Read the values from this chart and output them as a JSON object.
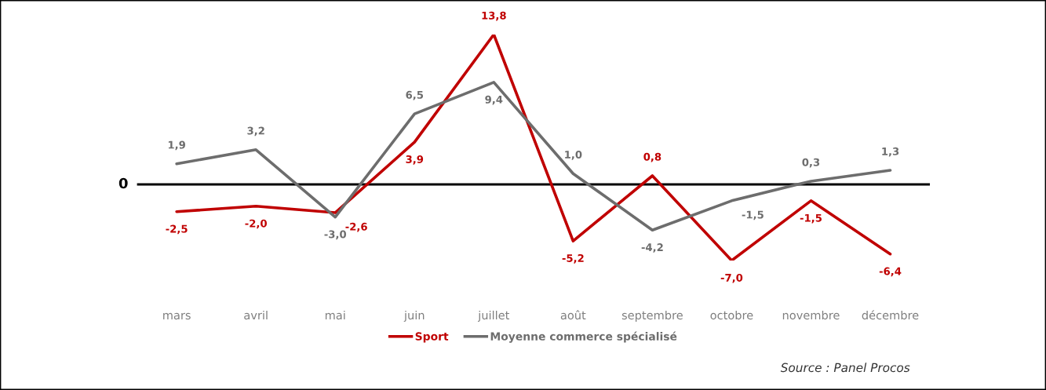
{
  "chart_data": {
    "type": "line",
    "categories": [
      "mars",
      "avril",
      "mai",
      "juin",
      "juillet",
      "août",
      "septembre",
      "octobre",
      "novembre",
      "décembre"
    ],
    "series": [
      {
        "name": "Sport",
        "color": "#c00000",
        "values": [
          -2.5,
          -2.0,
          -2.6,
          3.9,
          13.8,
          -5.2,
          0.8,
          -7.0,
          -1.5,
          -6.4
        ],
        "value_labels": [
          "-2,5",
          "-2,0",
          "-2,6",
          "3,9",
          "13,8",
          "-5,2",
          "0,8",
          "-7,0",
          "-1,5",
          "-6,4"
        ]
      },
      {
        "name": "Moyenne commerce spécialisé",
        "color": "#6d6d6d",
        "values": [
          1.9,
          3.2,
          -3.0,
          6.5,
          9.4,
          1.0,
          -4.2,
          -1.5,
          0.3,
          1.3
        ],
        "value_labels": [
          "1,9",
          "3,2",
          "-3,0",
          "6,5",
          "9,4",
          "1,0",
          "-4,2",
          "-1,5",
          "0,3",
          "1,3"
        ]
      }
    ],
    "ref_lines": [
      {
        "axis": "y",
        "value": 0,
        "label": "0",
        "color": "#000000",
        "line_style": "solid"
      }
    ],
    "legend": "bottom",
    "grid": false,
    "line_style": "solid",
    "annotations": [
      "Source : Panel Procos"
    ]
  }
}
